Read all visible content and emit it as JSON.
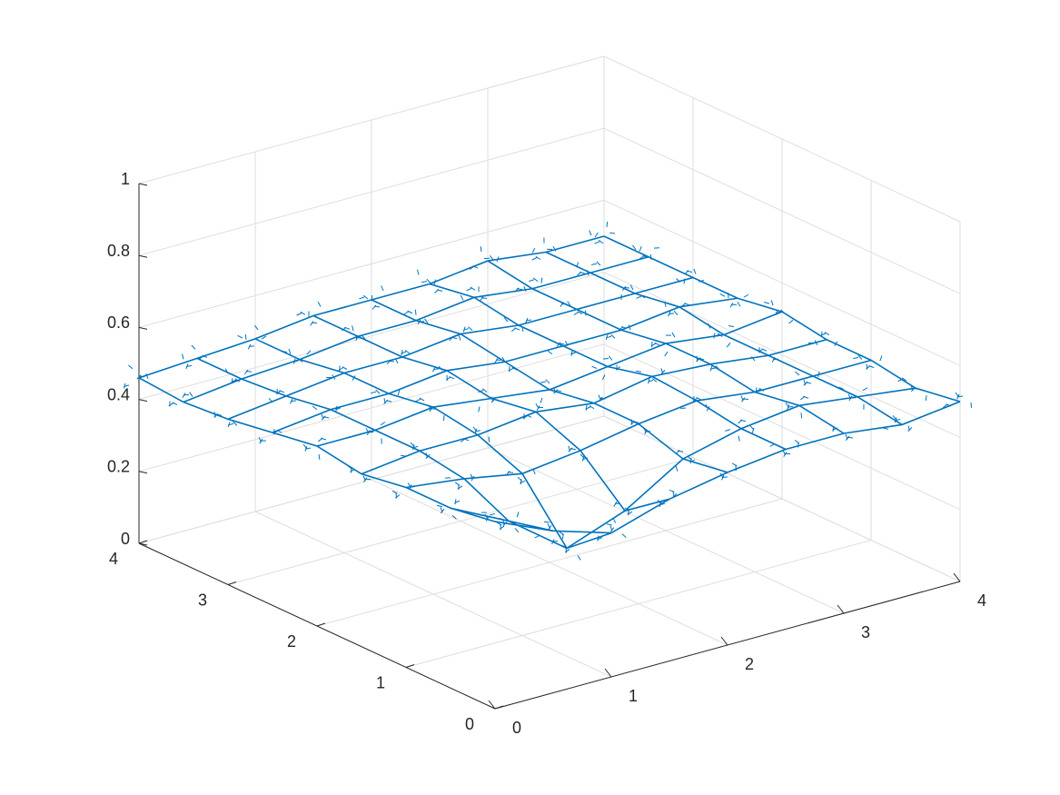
{
  "chart_data": {
    "type": "surface3d",
    "color": "#0072bd",
    "grid": true,
    "x": [
      0,
      0.5,
      1,
      1.5,
      2,
      2.5,
      3,
      3.5,
      4
    ],
    "y": [
      0,
      0.5,
      1,
      1.5,
      2,
      2.5,
      3,
      3.5,
      4
    ],
    "z": [
      [
        0.52,
        0.45,
        0.4,
        0.45,
        0.48,
        0.5,
        0.5,
        0.48,
        0.5
      ],
      [
        0.5,
        0.42,
        0.3,
        0.36,
        0.46,
        0.5,
        0.52,
        0.5,
        0.48
      ],
      [
        0.5,
        0.48,
        0.45,
        0.47,
        0.5,
        0.52,
        0.5,
        0.5,
        0.5
      ],
      [
        0.48,
        0.5,
        0.5,
        0.52,
        0.5,
        0.53,
        0.52,
        0.5,
        0.5
      ],
      [
        0.5,
        0.5,
        0.52,
        0.5,
        0.48,
        0.5,
        0.52,
        0.5,
        0.52
      ],
      [
        0.48,
        0.5,
        0.5,
        0.52,
        0.5,
        0.5,
        0.5,
        0.52,
        0.5
      ],
      [
        0.46,
        0.48,
        0.5,
        0.5,
        0.52,
        0.5,
        0.5,
        0.5,
        0.5
      ],
      [
        0.45,
        0.47,
        0.48,
        0.5,
        0.5,
        0.52,
        0.5,
        0.5,
        0.5
      ],
      [
        0.46,
        0.47,
        0.48,
        0.5,
        0.5,
        0.5,
        0.52,
        0.5,
        0.5
      ]
    ],
    "xlim": [
      0,
      4
    ],
    "ylim": [
      0,
      4
    ],
    "zlim": [
      0,
      1
    ],
    "xticks": [
      0,
      1,
      2,
      3,
      4
    ],
    "yticks": [
      0,
      1,
      2,
      3,
      4
    ],
    "zticks": [
      0,
      0.2,
      0.4,
      0.6,
      0.8,
      1
    ]
  }
}
